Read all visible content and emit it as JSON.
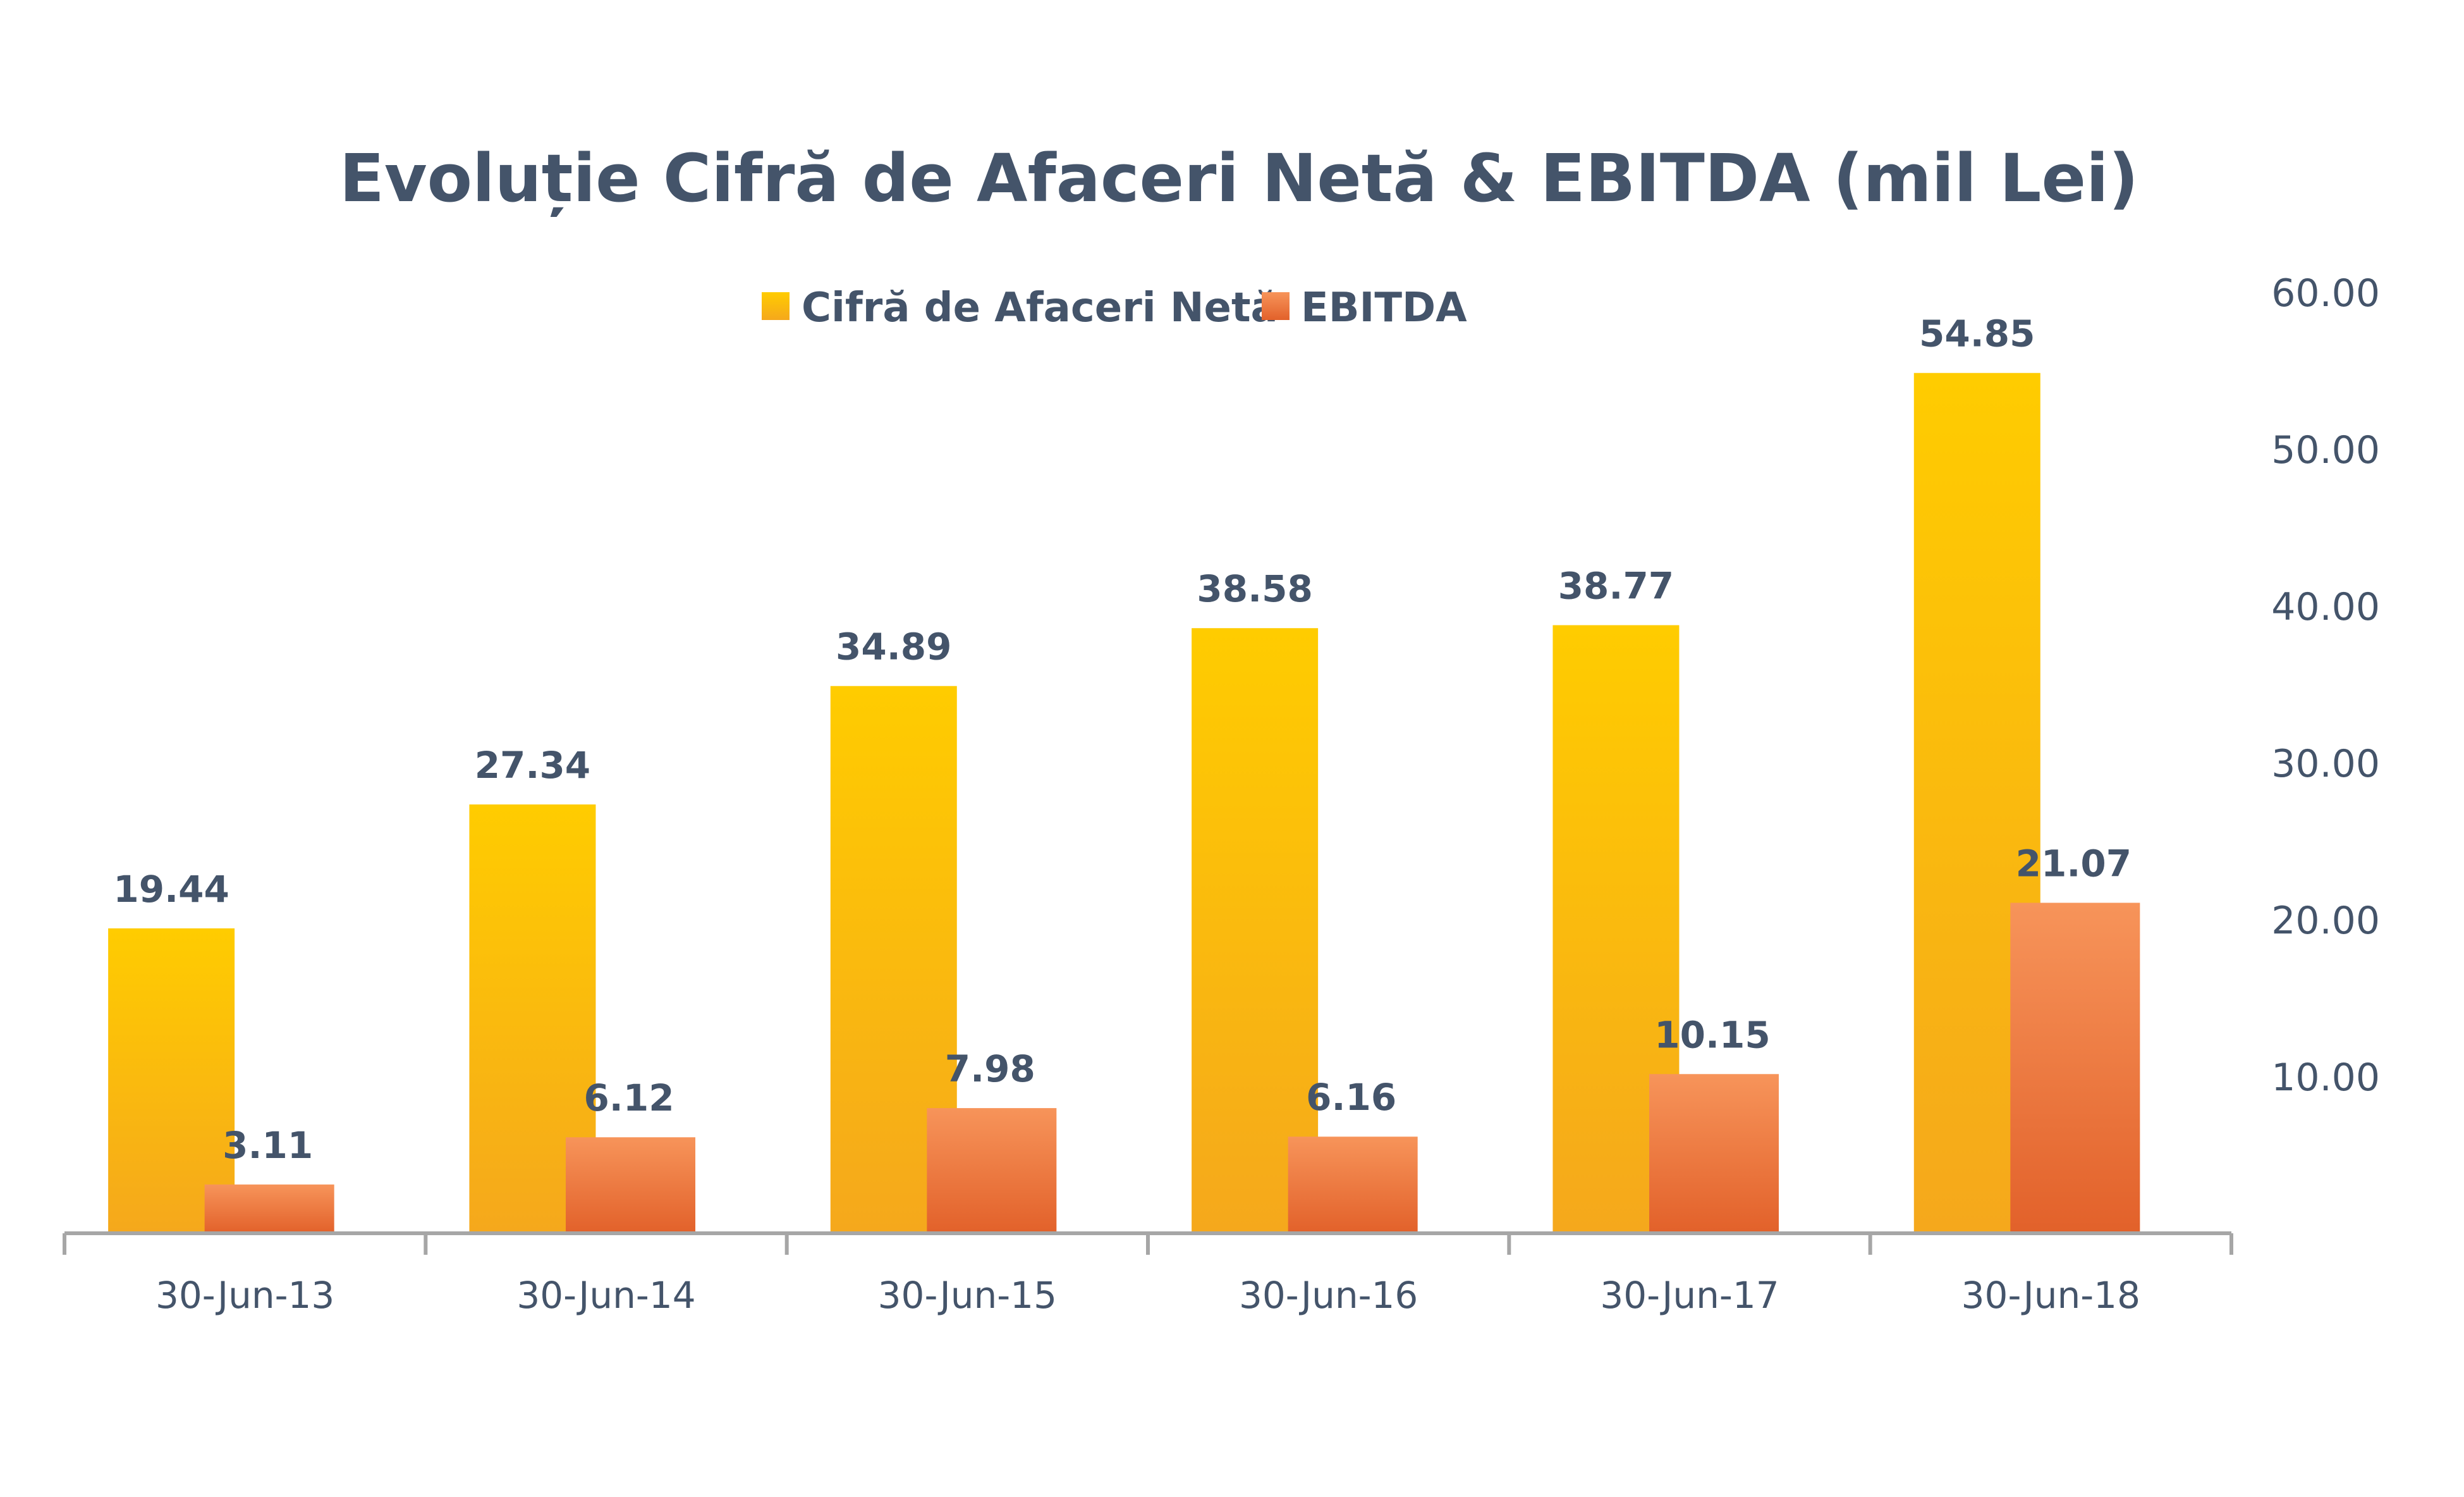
{
  "chart_data": {
    "type": "bar",
    "title": "Evoluție Cifră de Afaceri Netă & EBITDA (mil Lei)",
    "categories": [
      "30-Jun-13",
      "30-Jun-14",
      "30-Jun-15",
      "30-Jun-16",
      "30-Jun-17",
      "30-Jun-18"
    ],
    "series": [
      {
        "name": "Cifră de Afaceri Netă",
        "values": [
          19.44,
          27.34,
          34.89,
          38.58,
          38.77,
          54.85
        ],
        "labels": [
          "19.44",
          "27.34",
          "34.89",
          "38.58",
          "38.77",
          "54.85"
        ],
        "color_top": "#ffcc00",
        "color_bottom": "#f5a81c"
      },
      {
        "name": "EBITDA",
        "values": [
          3.11,
          6.12,
          7.98,
          6.16,
          10.15,
          21.07
        ],
        "labels": [
          "3.11",
          "6.12",
          "7.98",
          "6.16",
          "10.15",
          "21.07"
        ],
        "color_top": "#f7945a",
        "color_bottom": "#e2612a"
      }
    ],
    "ylim": [
      0,
      60
    ],
    "y_ticks": [
      "10.00",
      "20.00",
      "30.00",
      "40.00",
      "50.00",
      "60.00"
    ],
    "y_tick_values": [
      10,
      20,
      30,
      40,
      50,
      60
    ],
    "y_axis_position": "right",
    "legend_position": "top",
    "grid": false,
    "axis_color": "#a6a6a6",
    "text_color": "#44546a"
  }
}
